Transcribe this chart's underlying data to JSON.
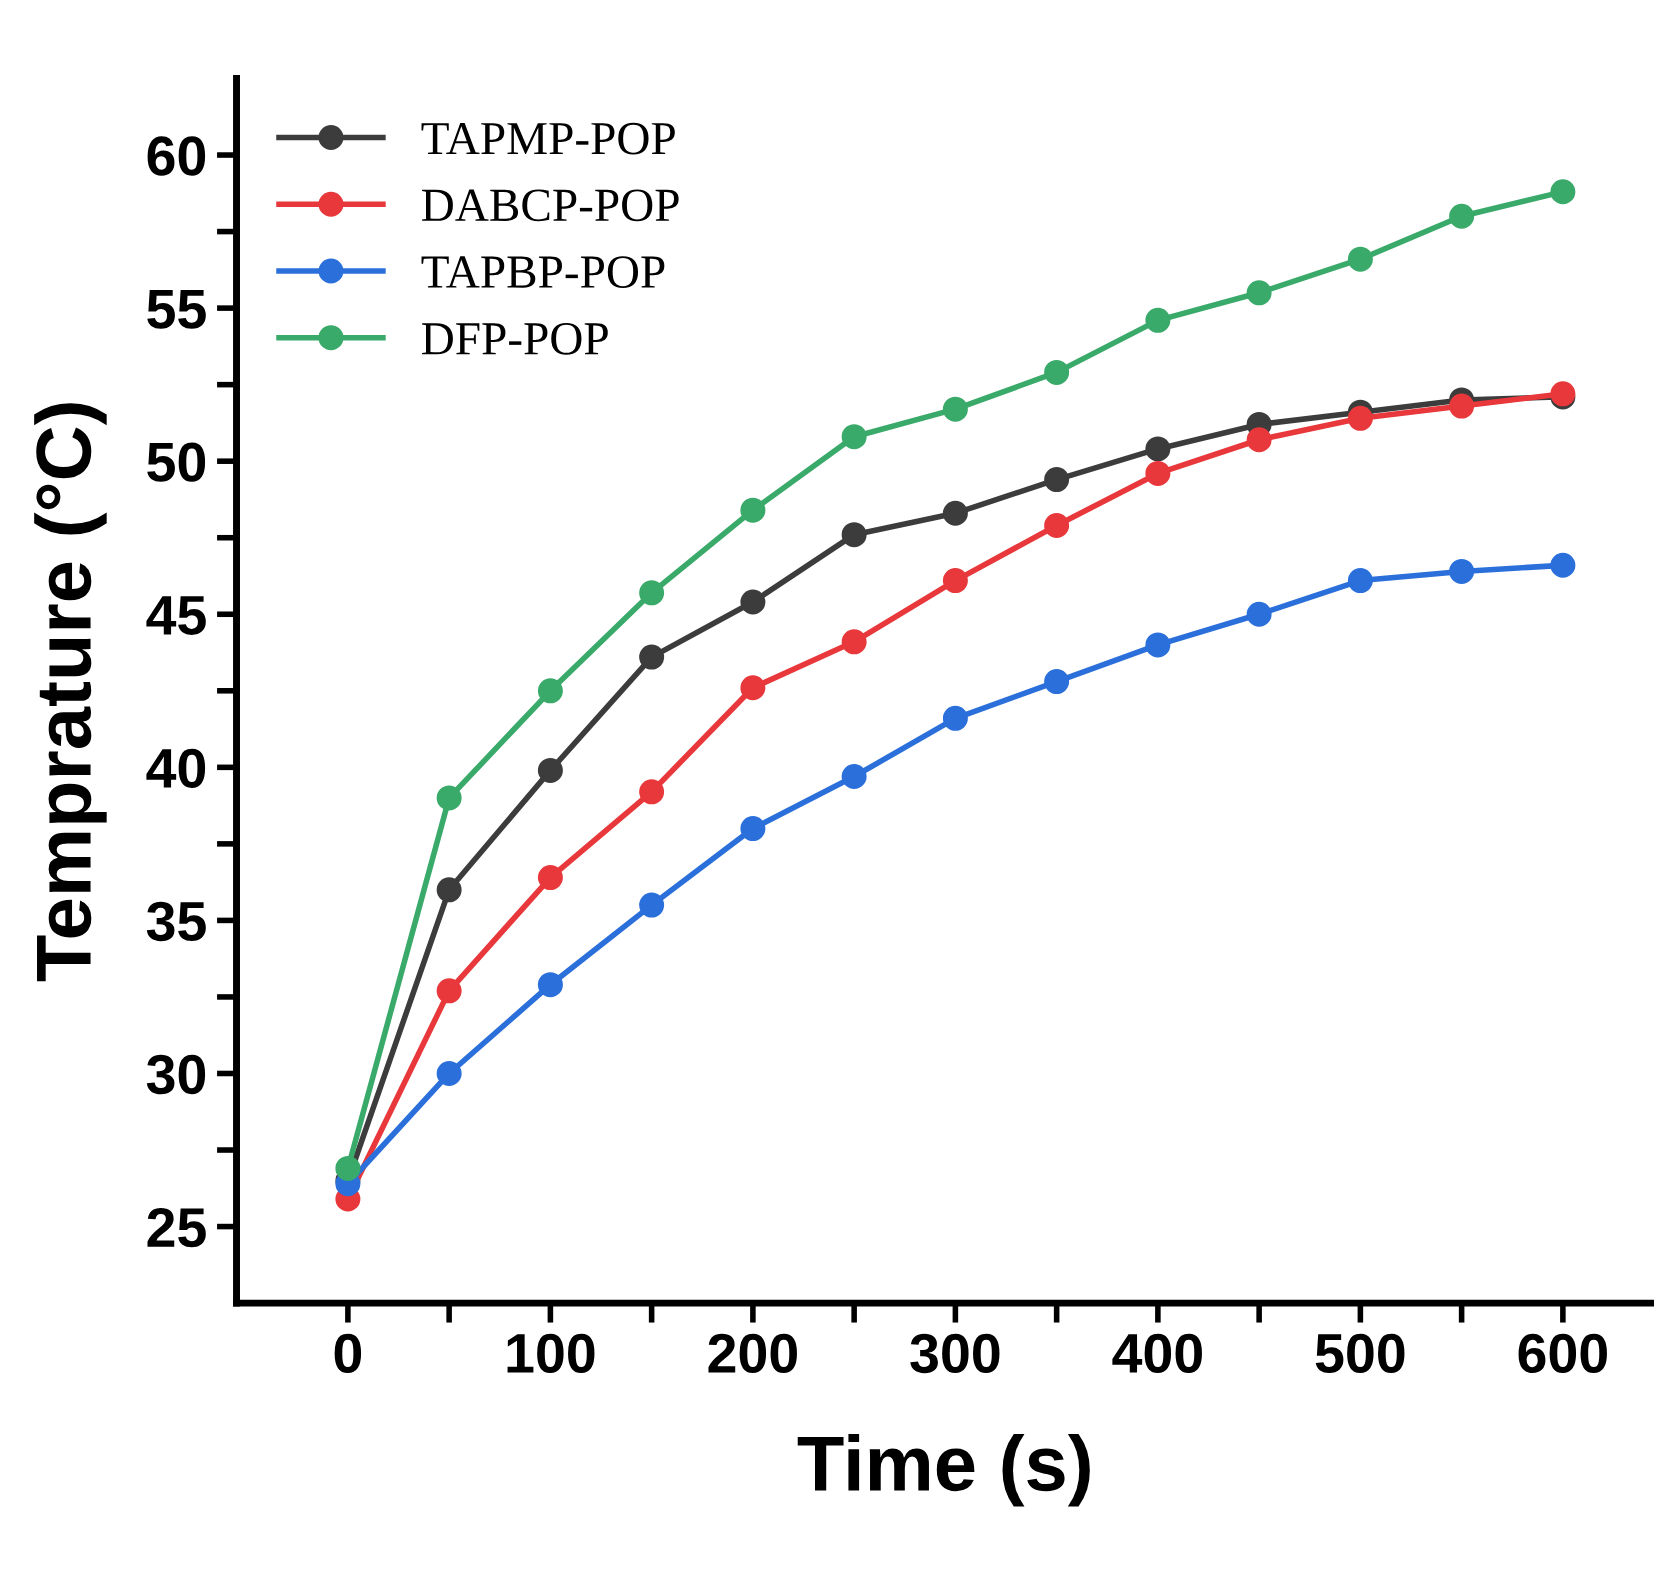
{
  "chart_data": {
    "type": "line",
    "xlabel": "Time (s)",
    "ylabel": "Temprature (°C)",
    "x": [
      0,
      50,
      100,
      150,
      200,
      250,
      300,
      350,
      400,
      450,
      500,
      550,
      600
    ],
    "series": [
      {
        "name": "TAPMP-POP",
        "color": "#3c3c3c",
        "values": [
          26.5,
          36.0,
          39.9,
          43.6,
          45.4,
          47.6,
          48.3,
          49.4,
          50.4,
          51.2,
          51.6,
          52.0,
          52.1
        ]
      },
      {
        "name": "DABCP-POP",
        "color": "#e8383b",
        "values": [
          25.9,
          32.7,
          36.4,
          39.2,
          42.6,
          44.1,
          46.1,
          47.9,
          49.6,
          50.7,
          51.4,
          51.8,
          52.2
        ]
      },
      {
        "name": "TAPBP-POP",
        "color": "#2b6fdb",
        "values": [
          26.4,
          30.0,
          32.9,
          35.5,
          38.0,
          39.7,
          41.6,
          42.8,
          44.0,
          45.0,
          46.1,
          46.4,
          46.6
        ]
      },
      {
        "name": "DFP-POP",
        "color": "#3aaa6a",
        "values": [
          26.9,
          39.0,
          42.5,
          45.7,
          48.4,
          50.8,
          51.7,
          52.9,
          54.6,
          55.5,
          56.6,
          58.0,
          58.8
        ]
      }
    ],
    "xlim": [
      -55,
      645
    ],
    "ylim": [
      22.5,
      62.5
    ],
    "xticks": [
      0,
      {
        "value": 50,
        "label": null
      },
      100,
      {
        "value": 150,
        "label": null
      },
      200,
      {
        "value": 250,
        "label": null
      },
      300,
      {
        "value": 350,
        "label": null
      },
      400,
      {
        "value": 450,
        "label": null
      },
      500,
      {
        "value": 550,
        "label": null
      },
      600
    ],
    "yticks": [
      25,
      {
        "value": 27.5,
        "label": null
      },
      30,
      {
        "value": 32.5,
        "label": null
      },
      35,
      {
        "value": 37.5,
        "label": null
      },
      40,
      {
        "value": 42.5,
        "label": null
      },
      45,
      {
        "value": 47.5,
        "label": null
      },
      50,
      {
        "value": 52.5,
        "label": null
      },
      55,
      {
        "value": 57.5,
        "label": null
      },
      60
    ],
    "legend": "top left",
    "marker": "circle",
    "line_style": "solid",
    "grid": false
  }
}
